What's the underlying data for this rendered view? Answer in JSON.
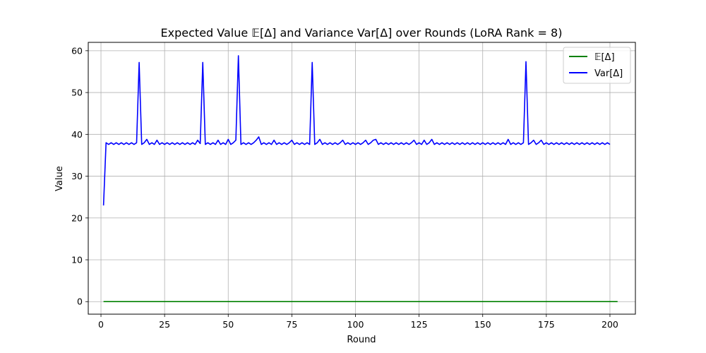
{
  "chart_data": {
    "type": "line",
    "title": "Expected Value 𝔼[Δ] and Variance Var[Δ] over Rounds (LoRA Rank = 8)",
    "xlabel": "Round",
    "ylabel": "Value",
    "xlim": [
      -5,
      210
    ],
    "ylim": [
      -3,
      62
    ],
    "x_ticks": [
      0,
      25,
      50,
      75,
      100,
      125,
      150,
      175,
      200
    ],
    "y_ticks": [
      0,
      10,
      20,
      30,
      40,
      50,
      60
    ],
    "grid": true,
    "legend_position": "top-right",
    "x": {
      "start": 1,
      "end": 200,
      "step": 1
    },
    "series": [
      {
        "name": "𝔼[Δ]",
        "color": "#008000",
        "values": [
          0.0,
          0.0,
          0.0,
          0.0,
          0.0,
          0.0,
          0.0,
          0.0,
          0.0,
          0.0,
          0.0,
          0.0,
          0.0,
          0.0,
          0.0,
          0.0,
          0.0,
          0.0,
          0.0,
          0.0,
          0.0,
          0.0,
          0.0,
          0.0,
          0.0,
          0.0,
          0.0,
          0.0,
          0.0,
          0.0,
          0.0,
          0.0,
          0.0,
          0.0,
          0.0,
          0.0,
          0.0,
          0.0,
          0.0,
          0.0,
          0.0,
          0.0,
          0.0,
          0.0,
          0.0,
          0.0,
          0.0,
          0.0,
          0.0,
          0.0,
          0.0,
          0.0,
          0.0,
          0.0,
          0.0,
          0.0,
          0.0,
          0.0,
          0.0,
          0.0,
          0.0,
          0.0,
          0.0,
          0.0,
          0.0,
          0.0,
          0.0,
          0.0,
          0.0,
          0.0,
          0.0,
          0.0,
          0.0,
          0.0,
          0.0,
          0.0,
          0.0,
          0.0,
          0.0,
          0.0,
          0.0,
          0.0,
          0.0,
          0.0,
          0.0,
          0.0,
          0.0,
          0.0,
          0.0,
          0.0,
          0.0,
          0.0,
          0.0,
          0.0,
          0.0,
          0.0,
          0.0,
          0.0,
          0.0,
          0.0,
          0.0,
          0.0,
          0.0,
          0.0,
          0.0,
          0.0,
          0.0,
          0.0,
          0.0,
          0.0,
          0.0,
          0.0,
          0.0,
          0.0,
          0.0,
          0.0,
          0.0,
          0.0,
          0.0,
          0.0,
          0.0,
          0.0,
          0.0,
          0.0,
          0.0,
          0.0,
          0.0,
          0.0,
          0.0,
          0.0,
          0.0,
          0.0,
          0.0,
          0.0,
          0.0,
          0.0,
          0.0,
          0.0,
          0.0,
          0.0,
          0.0,
          0.0,
          0.0,
          0.0,
          0.0,
          0.0,
          0.0,
          0.0,
          0.0,
          0.0,
          0.0,
          0.0,
          0.0,
          0.0,
          0.0,
          0.0,
          0.0,
          0.0,
          0.0,
          0.0,
          0.0,
          0.0,
          0.0,
          0.0,
          0.0,
          0.0,
          0.0,
          0.0,
          0.0,
          0.0,
          0.0,
          0.0,
          0.0,
          0.0,
          0.0,
          0.0,
          0.0,
          0.0,
          0.0,
          0.0,
          0.0,
          0.0,
          0.0,
          0.0,
          0.0,
          0.0,
          0.0,
          0.0,
          0.0,
          0.0,
          0.0,
          0.0,
          0.0,
          0.0,
          0.0,
          0.0,
          0.0,
          0.0,
          0.0,
          0.0,
          0.0,
          0.0,
          0.0
        ]
      },
      {
        "name": "Var[Δ]",
        "color": "#0000ff",
        "values": [
          23.0,
          38.0,
          37.6,
          38.0,
          37.6,
          38.0,
          37.6,
          38.0,
          37.6,
          38.0,
          37.6,
          38.0,
          37.6,
          38.0,
          57.2,
          37.6,
          38.0,
          38.8,
          37.6,
          38.0,
          37.6,
          38.6,
          37.6,
          38.0,
          37.6,
          38.0,
          37.6,
          38.0,
          37.6,
          38.0,
          37.6,
          38.0,
          37.6,
          38.0,
          37.6,
          38.0,
          37.6,
          38.6,
          37.8,
          57.2,
          37.6,
          38.0,
          37.6,
          38.0,
          37.6,
          38.6,
          37.6,
          38.0,
          37.6,
          38.8,
          37.6,
          38.0,
          38.6,
          58.8,
          37.6,
          38.0,
          37.6,
          38.0,
          37.6,
          38.0,
          38.6,
          39.4,
          37.6,
          38.0,
          37.6,
          38.0,
          37.6,
          38.6,
          37.6,
          38.0,
          37.6,
          38.0,
          37.6,
          38.0,
          38.6,
          37.6,
          38.0,
          37.6,
          38.0,
          37.6,
          38.0,
          37.6,
          57.2,
          37.6,
          38.0,
          38.8,
          37.6,
          38.0,
          37.6,
          38.0,
          37.6,
          38.0,
          37.6,
          38.0,
          38.6,
          37.6,
          38.0,
          37.6,
          38.0,
          37.6,
          38.0,
          37.6,
          38.0,
          38.6,
          37.6,
          38.0,
          38.6,
          38.8,
          37.6,
          38.0,
          37.6,
          38.0,
          37.6,
          38.0,
          37.6,
          38.0,
          37.6,
          38.0,
          37.6,
          38.0,
          37.6,
          38.0,
          38.6,
          37.6,
          38.0,
          37.6,
          38.6,
          37.6,
          38.0,
          38.8,
          37.6,
          38.0,
          37.6,
          38.0,
          37.6,
          38.0,
          37.6,
          38.0,
          37.6,
          38.0,
          37.6,
          38.0,
          37.6,
          38.0,
          37.6,
          38.0,
          37.6,
          38.0,
          37.6,
          38.0,
          37.6,
          38.0,
          37.6,
          38.0,
          37.6,
          38.0,
          37.6,
          38.0,
          37.6,
          38.8,
          37.6,
          38.0,
          37.6,
          38.0,
          37.6,
          38.0,
          57.4,
          37.6,
          38.0,
          38.6,
          37.6,
          38.0,
          38.6,
          37.6,
          38.0,
          37.6,
          38.0,
          37.6,
          38.0,
          37.6,
          38.0,
          37.6,
          38.0,
          37.6,
          38.0,
          37.6,
          38.0,
          37.6,
          38.0,
          37.6,
          38.0,
          37.6,
          38.0,
          37.6,
          38.0,
          37.6,
          38.0,
          37.6,
          38.0,
          37.6
        ]
      }
    ]
  }
}
